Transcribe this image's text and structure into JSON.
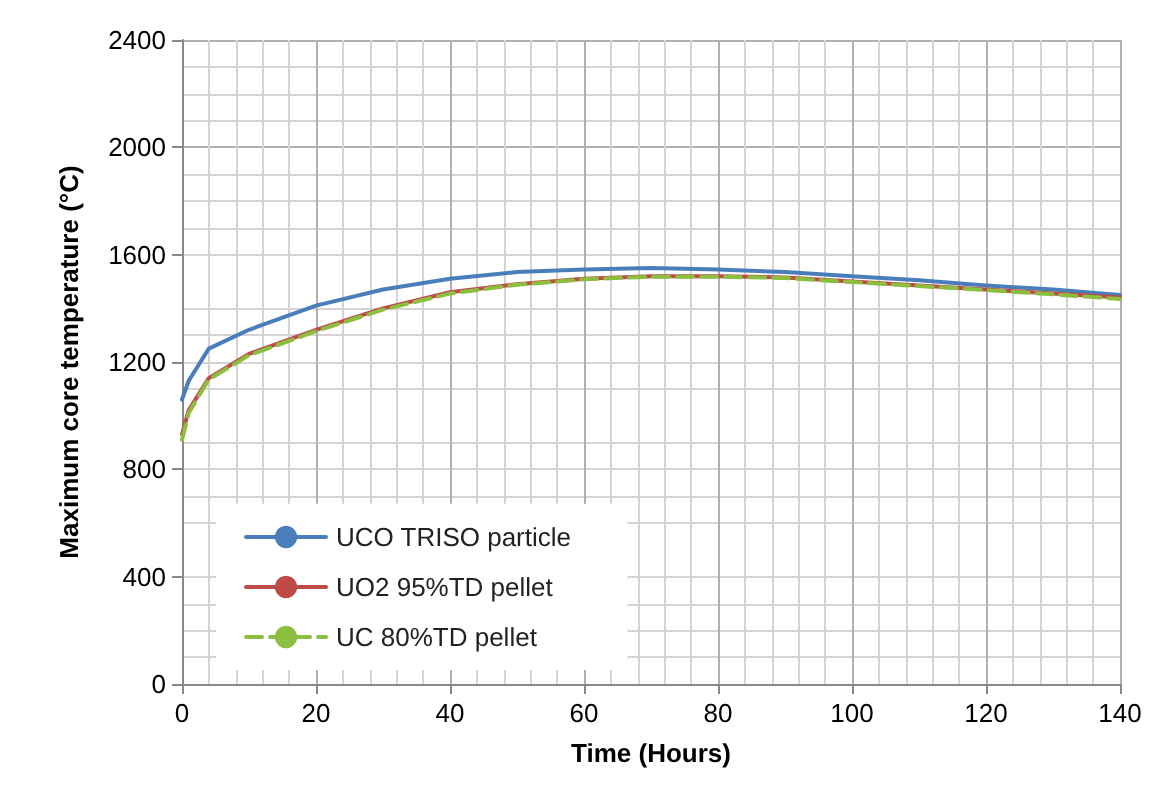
{
  "chart_data": {
    "type": "line",
    "xlabel": "Time (Hours)",
    "ylabel": "Maximum core temperature (°C)",
    "x": [
      0,
      1,
      4,
      10,
      20,
      30,
      40,
      50,
      60,
      70,
      80,
      90,
      100,
      110,
      120,
      130,
      140
    ],
    "series": [
      {
        "name": "UCO TRISO particle",
        "color": "#4a7ebb",
        "values": [
          1060,
          1130,
          1250,
          1320,
          1410,
          1470,
          1510,
          1535,
          1545,
          1550,
          1545,
          1535,
          1520,
          1505,
          1485,
          1470,
          1450
        ]
      },
      {
        "name": "UO2 95%TD pellet",
        "color": "#be4b48",
        "values": [
          930,
          1020,
          1140,
          1230,
          1320,
          1400,
          1460,
          1490,
          1510,
          1520,
          1520,
          1515,
          1500,
          1485,
          1470,
          1455,
          1440
        ],
        "line_style": "solid"
      },
      {
        "name": "UC 80%TD pellet",
        "color": "#8cbf3f",
        "values": [
          910,
          1010,
          1135,
          1225,
          1315,
          1395,
          1455,
          1488,
          1508,
          1518,
          1518,
          1513,
          1498,
          1483,
          1468,
          1452,
          1435
        ],
        "line_style": "dashed"
      }
    ],
    "xlim": [
      0,
      140
    ],
    "xticks": [
      0,
      20,
      40,
      60,
      80,
      100,
      120,
      140
    ],
    "ylim": [
      0,
      2400
    ],
    "yticks": [
      0,
      400,
      800,
      1200,
      1600,
      2000,
      2400
    ],
    "grid": true,
    "legend": "bottom left",
    "marker": "none"
  }
}
